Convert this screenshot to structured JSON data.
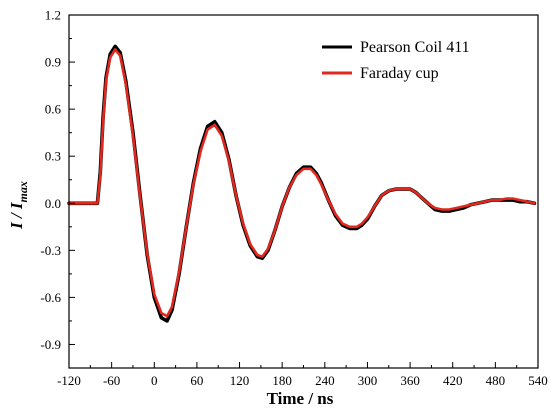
{
  "chart_data": {
    "type": "line",
    "xlabel": "Time / ns",
    "ylabel_main": "I / I",
    "ylabel_sub": "max",
    "xlim": [
      -120,
      540
    ],
    "ylim": [
      -1.05,
      1.2
    ],
    "xticks": [
      -120,
      -60,
      0,
      60,
      120,
      180,
      240,
      300,
      360,
      420,
      480,
      540
    ],
    "xtick_labels": [
      "-120",
      "-60",
      "0",
      "60",
      "120",
      "180",
      "240",
      "300",
      "360",
      "420",
      "480",
      "540"
    ],
    "yticks": [
      -0.9,
      -0.6,
      -0.3,
      0.0,
      0.3,
      0.6,
      0.9,
      1.2
    ],
    "ytick_labels": [
      "-0.9",
      "-0.6",
      "-0.3",
      "0.0",
      "0.3",
      "0.6",
      "0.9",
      "1.2"
    ],
    "legend_position": "top-right",
    "grid": false,
    "series": [
      {
        "name": "Pearson Coil 411",
        "color": "#000000",
        "x": [
          -120,
          -90,
          -80,
          -76,
          -72,
          -68,
          -62,
          -55,
          -48,
          -40,
          -30,
          -20,
          -10,
          0,
          10,
          18,
          25,
          35,
          45,
          55,
          65,
          75,
          85,
          95,
          105,
          115,
          125,
          135,
          145,
          152,
          160,
          170,
          180,
          190,
          200,
          210,
          220,
          228,
          235,
          245,
          255,
          265,
          275,
          285,
          292,
          300,
          310,
          320,
          330,
          340,
          350,
          360,
          368,
          375,
          385,
          395,
          405,
          415,
          425,
          435,
          445,
          455,
          465,
          475,
          485,
          495,
          505,
          515,
          525,
          535
        ],
        "y": [
          0.0,
          0.0,
          0.0,
          0.2,
          0.55,
          0.8,
          0.95,
          1.0,
          0.96,
          0.78,
          0.45,
          0.05,
          -0.33,
          -0.6,
          -0.73,
          -0.75,
          -0.68,
          -0.45,
          -0.15,
          0.13,
          0.35,
          0.49,
          0.52,
          0.45,
          0.28,
          0.05,
          -0.14,
          -0.27,
          -0.34,
          -0.35,
          -0.3,
          -0.17,
          -0.02,
          0.1,
          0.19,
          0.23,
          0.23,
          0.19,
          0.13,
          0.02,
          -0.08,
          -0.14,
          -0.16,
          -0.16,
          -0.14,
          -0.1,
          -0.02,
          0.05,
          0.08,
          0.09,
          0.09,
          0.09,
          0.07,
          0.04,
          0.0,
          -0.04,
          -0.05,
          -0.05,
          -0.04,
          -0.03,
          -0.01,
          0.0,
          0.01,
          0.02,
          0.02,
          0.02,
          0.02,
          0.01,
          0.01,
          0.0
        ]
      },
      {
        "name": "Faraday cup",
        "color": "#e0281e",
        "x": [
          -120,
          -90,
          -80,
          -76,
          -72,
          -68,
          -62,
          -55,
          -48,
          -40,
          -30,
          -20,
          -10,
          0,
          10,
          18,
          25,
          35,
          45,
          55,
          65,
          75,
          85,
          95,
          105,
          115,
          125,
          135,
          145,
          152,
          160,
          170,
          180,
          190,
          200,
          210,
          220,
          228,
          235,
          245,
          255,
          265,
          275,
          285,
          292,
          300,
          310,
          320,
          330,
          340,
          350,
          360,
          368,
          375,
          385,
          395,
          405,
          415,
          425,
          435,
          445,
          455,
          465,
          475,
          485,
          495,
          505,
          515,
          525,
          535
        ],
        "y": [
          0.0,
          0.0,
          0.0,
          0.18,
          0.52,
          0.78,
          0.93,
          0.98,
          0.94,
          0.76,
          0.43,
          0.04,
          -0.32,
          -0.58,
          -0.7,
          -0.72,
          -0.66,
          -0.44,
          -0.15,
          0.12,
          0.33,
          0.47,
          0.5,
          0.43,
          0.27,
          0.05,
          -0.13,
          -0.26,
          -0.33,
          -0.34,
          -0.29,
          -0.17,
          -0.02,
          0.1,
          0.18,
          0.22,
          0.22,
          0.18,
          0.12,
          0.02,
          -0.07,
          -0.13,
          -0.15,
          -0.15,
          -0.13,
          -0.09,
          -0.02,
          0.05,
          0.08,
          0.09,
          0.09,
          0.09,
          0.07,
          0.04,
          0.0,
          -0.03,
          -0.04,
          -0.04,
          -0.03,
          -0.02,
          -0.01,
          0.0,
          0.01,
          0.02,
          0.02,
          0.03,
          0.03,
          0.02,
          0.01,
          0.0
        ]
      }
    ]
  }
}
